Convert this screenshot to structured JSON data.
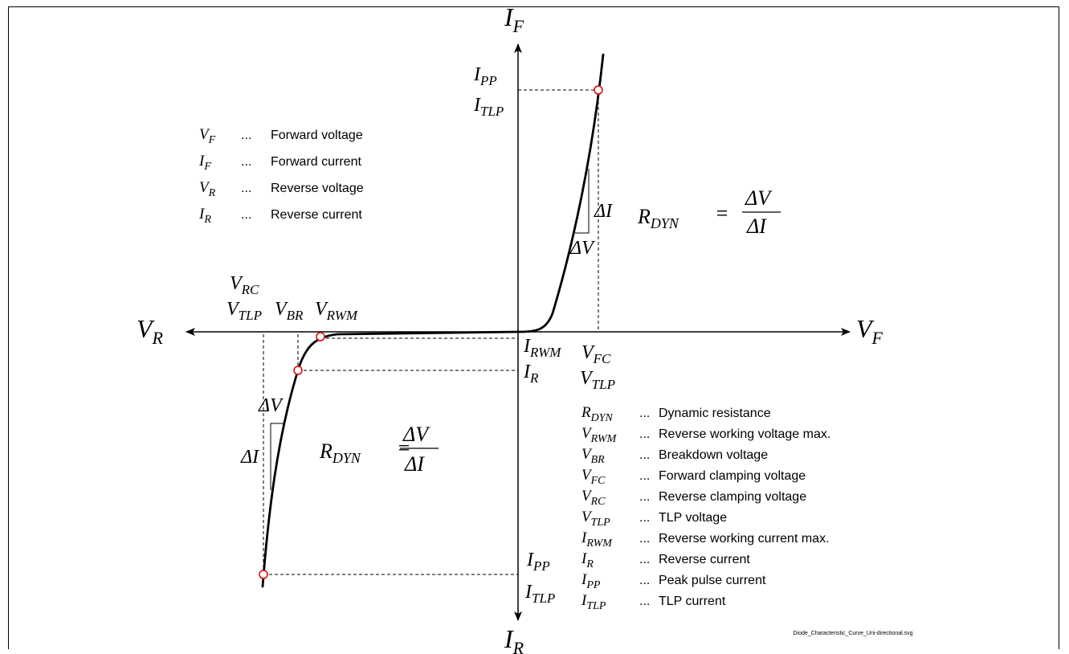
{
  "axes": {
    "if_main": "I",
    "if_sub": "F",
    "ir_main": "I",
    "ir_sub": "R",
    "vf_main": "V",
    "vf_sub": "F",
    "vr_main": "V",
    "vr_sub": "R"
  },
  "labels": {
    "ipp_top_main": "I",
    "ipp_top_sub": "PP",
    "itlp_top_main": "I",
    "itlp_top_sub": "TLP",
    "vrc_main": "V",
    "vrc_sub": "RC",
    "vtlp_left_main": "V",
    "vtlp_left_sub": "TLP",
    "vbr_main": "V",
    "vbr_sub": "BR",
    "vrwm_main": "V",
    "vrwm_sub": "RWM",
    "irwm_main": "I",
    "irwm_sub": "RWM",
    "ir_label_main": "I",
    "ir_label_sub": "R",
    "vfc_main": "V",
    "vfc_sub": "FC",
    "vtlp_right_main": "V",
    "vtlp_right_sub": "TLP",
    "ipp_bottom_main": "I",
    "ipp_bottom_sub": "PP",
    "itlp_bottom_main": "I",
    "itlp_bottom_sub": "TLP",
    "delta_i_top": "ΔI",
    "delta_v_top": "ΔV",
    "delta_v_bottom": "ΔV",
    "delta_i_bottom": "ΔI"
  },
  "formula": {
    "r_main": "R",
    "r_sub": "DYN",
    "equals": "=",
    "numerator": "ΔV",
    "denominator": "ΔI"
  },
  "legend_top": [
    {
      "main": "V",
      "sub": "F",
      "dots": "...",
      "text": "Forward voltage"
    },
    {
      "main": "I",
      "sub": "F",
      "dots": "...",
      "text": "Forward current"
    },
    {
      "main": "V",
      "sub": "R",
      "dots": "...",
      "text": "Reverse voltage"
    },
    {
      "main": "I",
      "sub": "R",
      "dots": "...",
      "text": "Reverse current"
    }
  ],
  "legend_bottom": [
    {
      "main": "R",
      "sub": "DYN",
      "dots": "...",
      "text": "Dynamic resistance"
    },
    {
      "main": "V",
      "sub": "RWM",
      "dots": "...",
      "text": "Reverse working voltage max."
    },
    {
      "main": "V",
      "sub": "BR",
      "dots": "...",
      "text": "Breakdown voltage"
    },
    {
      "main": "V",
      "sub": "FC",
      "dots": "...",
      "text": "Forward clamping voltage"
    },
    {
      "main": "V",
      "sub": "RC",
      "dots": "...",
      "text": "Reverse clamping voltage"
    },
    {
      "main": "V",
      "sub": "TLP",
      "dots": "...",
      "text": "TLP voltage"
    },
    {
      "main": "I",
      "sub": "RWM",
      "dots": "...",
      "text": "Reverse working current max."
    },
    {
      "main": "I",
      "sub": "R",
      "dots": "...",
      "text": "Reverse current"
    },
    {
      "main": "I",
      "sub": "PP",
      "dots": "...",
      "text": "Peak pulse current"
    },
    {
      "main": "I",
      "sub": "TLP",
      "dots": "...",
      "text": "TLP current"
    }
  ],
  "footer": {
    "filename": "Diode_Characteristic_Curve_Uni-directional.svg"
  },
  "colors": {
    "marker": "#e00000",
    "line": "#000000"
  }
}
